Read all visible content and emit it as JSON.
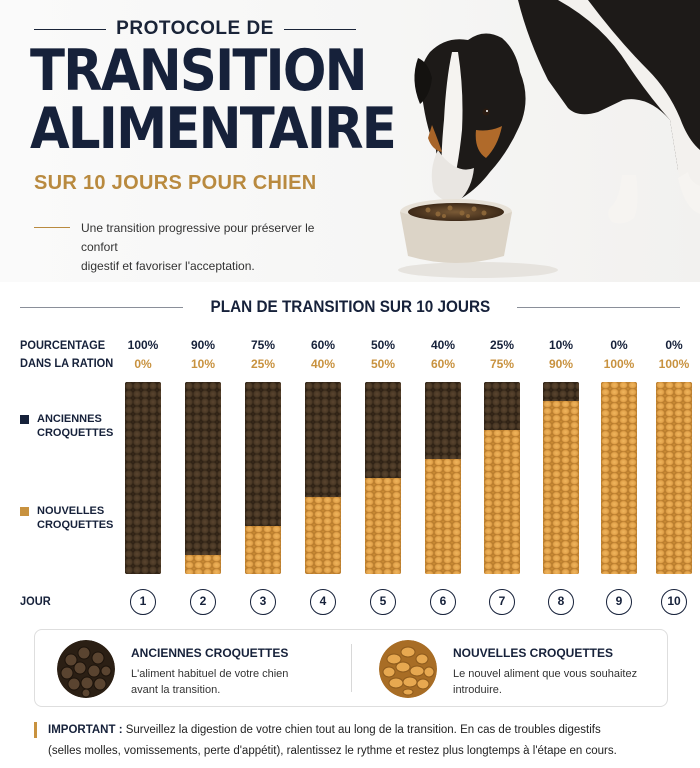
{
  "header": {
    "supertitle": "PROTOCOLE DE",
    "title_line1": "TRANSITION",
    "title_line2": "ALIMENTAIRE",
    "subtitle": "SUR 10 JOURS POUR CHIEN",
    "tagline_line1": "Une transition progressive pour préserver le confort",
    "tagline_line2": "digestif et favoriser l'acceptation."
  },
  "plan": {
    "section_title": "PLAN DE TRANSITION SUR 10 JOURS",
    "row_label_line1": "POURCENTAGE",
    "row_label_line2": "DANS LA RATION",
    "day_label": "JOUR",
    "legend_old_line1": "ANCIENNES",
    "legend_old_line2": "CROQUETTES",
    "legend_new_line1": "NOUVELLES",
    "legend_new_line2": "CROQUETTES"
  },
  "colors": {
    "navy": "#16213a",
    "gold": "#c8923f",
    "old_kibble": "#3a2b1c",
    "new_kibble": "#c98a34"
  },
  "chart_data": {
    "type": "bar",
    "stacked": true,
    "categories": [
      "1",
      "2",
      "3",
      "4",
      "5",
      "6",
      "7",
      "8",
      "9",
      "10"
    ],
    "series": [
      {
        "name": "ANCIENNES CROQUETTES",
        "values": [
          100,
          90,
          75,
          60,
          50,
          40,
          25,
          10,
          0,
          0
        ]
      },
      {
        "name": "NOUVELLES CROQUETTES",
        "values": [
          0,
          10,
          25,
          40,
          50,
          60,
          75,
          90,
          100,
          100
        ]
      }
    ],
    "old_labels": [
      "100%",
      "90%",
      "75%",
      "60%",
      "50%",
      "40%",
      "25%",
      "10%",
      "0%",
      "0%"
    ],
    "new_labels": [
      "0%",
      "10%",
      "25%",
      "40%",
      "50%",
      "60%",
      "75%",
      "90%",
      "100%",
      "100%"
    ],
    "xlabel": "JOUR",
    "ylabel": "POURCENTAGE DANS LA RATION",
    "ylim": [
      0,
      100
    ],
    "grid": false,
    "legend_position": "left"
  },
  "legend_box": {
    "old_title": "ANCIENNES CROQUETTES",
    "old_desc_line1": "L'aliment habituel de votre chien",
    "old_desc_line2": "avant la transition.",
    "new_title": "NOUVELLES CROQUETTES",
    "new_desc_line1": "Le nouvel aliment que vous souhaitez",
    "new_desc_line2": "introduire."
  },
  "important": {
    "label": "IMPORTANT :",
    "text_line1": "Surveillez la digestion de votre chien tout au long de la transition. En cas de troubles digestifs",
    "text_line2": "(selles molles, vomissements, perte d'appétit), ralentissez le rythme et restez plus longtemps à l'étape en cours."
  }
}
